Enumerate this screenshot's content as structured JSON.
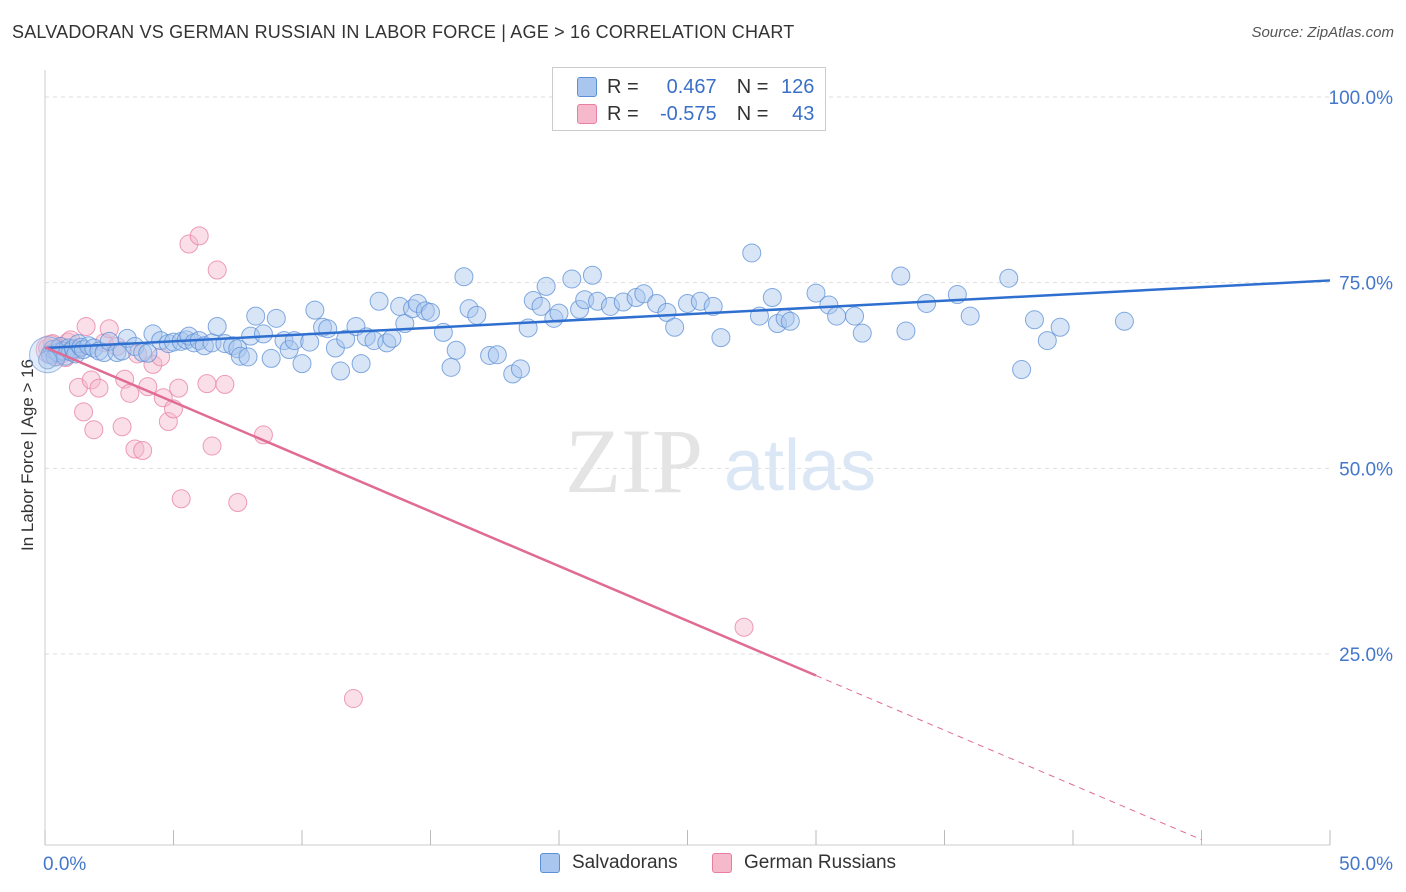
{
  "title": "SALVADORAN VS GERMAN RUSSIAN IN LABOR FORCE | AGE > 16 CORRELATION CHART",
  "source": "Source: ZipAtlas.com",
  "watermark": {
    "zip": "ZIP",
    "atlas": "atlas"
  },
  "colors": {
    "blue": "#5b8fd6",
    "blue_fill": "#a9c6ee",
    "blue_line": "#2f6fd0",
    "pink": "#e87ea1",
    "pink_fill": "#f5b9cb",
    "pink_line": "#e06b94",
    "axis_text": "#4477cc",
    "grid": "#dddddd"
  },
  "legend": {
    "r_label": "R =",
    "n_label": "N =",
    "blue": {
      "r": "0.467",
      "n": "126"
    },
    "pink": {
      "r": "-0.575",
      "n": "43"
    }
  },
  "bottom_legend": {
    "blue": "Salvadorans",
    "pink": "German Russians"
  },
  "chart_data": {
    "type": "scatter",
    "title": "SALVADORAN VS GERMAN RUSSIAN IN LABOR FORCE | AGE > 16 CORRELATION CHART",
    "xlabel": "",
    "ylabel": "In Labor Force | Age > 16",
    "xlim": [
      0,
      50
    ],
    "ylim": [
      0,
      105
    ],
    "x_tick_labels": [
      "0.0%",
      "50.0%"
    ],
    "y_ticks": [
      25,
      50,
      75,
      100
    ],
    "y_tick_labels": [
      "25.0%",
      "50.0%",
      "75.0%",
      "100.0%"
    ],
    "grid": true,
    "series": [
      {
        "name": "Salvadorans",
        "color": "#5b8fd6",
        "r": 0.467,
        "n": 126,
        "trend": {
          "x0": 0,
          "y0": 66.2,
          "x1": 50,
          "y1": 75.3,
          "dash_from": null
        },
        "points": [
          [
            0.2,
            65.3
          ],
          [
            0.3,
            66.0
          ],
          [
            0.4,
            65.0
          ],
          [
            0.5,
            65.6
          ],
          [
            0.6,
            66.4
          ],
          [
            0.7,
            65.8
          ],
          [
            0.8,
            65.1
          ],
          [
            0.9,
            66.2
          ],
          [
            1.0,
            65.7
          ],
          [
            1.1,
            66.1
          ],
          [
            1.2,
            65.4
          ],
          [
            1.3,
            66.8
          ],
          [
            1.4,
            66.3
          ],
          [
            1.5,
            66.0
          ],
          [
            1.7,
            66.5
          ],
          [
            1.9,
            66.2
          ],
          [
            2.1,
            65.8
          ],
          [
            2.3,
            65.6
          ],
          [
            2.5,
            67.1
          ],
          [
            2.8,
            65.6
          ],
          [
            3.0,
            65.8
          ],
          [
            3.2,
            67.5
          ],
          [
            3.5,
            66.4
          ],
          [
            3.8,
            65.6
          ],
          [
            4.0,
            65.5
          ],
          [
            4.2,
            68.1
          ],
          [
            4.5,
            67.2
          ],
          [
            4.8,
            66.8
          ],
          [
            5.0,
            67.0
          ],
          [
            5.3,
            67.1
          ],
          [
            5.5,
            67.3
          ],
          [
            5.6,
            67.8
          ],
          [
            5.8,
            66.9
          ],
          [
            6.0,
            67.2
          ],
          [
            6.2,
            66.5
          ],
          [
            6.5,
            66.9
          ],
          [
            6.7,
            69.1
          ],
          [
            7.0,
            66.8
          ],
          [
            7.3,
            66.5
          ],
          [
            7.5,
            66.1
          ],
          [
            7.6,
            65.1
          ],
          [
            7.9,
            65.0
          ],
          [
            8.0,
            67.8
          ],
          [
            8.2,
            70.5
          ],
          [
            8.5,
            68.1
          ],
          [
            8.8,
            64.8
          ],
          [
            9.0,
            70.2
          ],
          [
            9.3,
            67.2
          ],
          [
            9.5,
            66.0
          ],
          [
            9.7,
            67.2
          ],
          [
            10.0,
            64.1
          ],
          [
            10.3,
            67.0
          ],
          [
            10.5,
            71.3
          ],
          [
            10.8,
            69.0
          ],
          [
            11.0,
            68.8
          ],
          [
            11.3,
            66.2
          ],
          [
            11.5,
            63.1
          ],
          [
            11.7,
            67.4
          ],
          [
            12.1,
            69.1
          ],
          [
            12.3,
            64.1
          ],
          [
            12.5,
            67.7
          ],
          [
            12.8,
            67.2
          ],
          [
            13.0,
            72.5
          ],
          [
            13.3,
            66.9
          ],
          [
            13.5,
            67.5
          ],
          [
            13.8,
            71.8
          ],
          [
            14.0,
            69.5
          ],
          [
            14.3,
            71.5
          ],
          [
            14.5,
            72.2
          ],
          [
            14.8,
            71.2
          ],
          [
            15.0,
            71.0
          ],
          [
            15.5,
            68.3
          ],
          [
            15.8,
            63.6
          ],
          [
            16.0,
            65.9
          ],
          [
            16.3,
            75.8
          ],
          [
            16.5,
            71.5
          ],
          [
            16.8,
            70.6
          ],
          [
            17.3,
            65.2
          ],
          [
            17.6,
            65.3
          ],
          [
            18.2,
            62.7
          ],
          [
            18.5,
            63.4
          ],
          [
            18.8,
            68.9
          ],
          [
            19.0,
            72.6
          ],
          [
            19.3,
            71.8
          ],
          [
            19.5,
            74.5
          ],
          [
            19.8,
            70.2
          ],
          [
            20.0,
            70.9
          ],
          [
            20.5,
            75.5
          ],
          [
            20.8,
            71.4
          ],
          [
            21.0,
            72.7
          ],
          [
            21.3,
            76.0
          ],
          [
            21.5,
            72.5
          ],
          [
            22.0,
            71.8
          ],
          [
            22.5,
            72.4
          ],
          [
            23.0,
            73.0
          ],
          [
            23.3,
            73.5
          ],
          [
            23.8,
            72.2
          ],
          [
            24.2,
            71.0
          ],
          [
            24.5,
            69.0
          ],
          [
            25.0,
            72.2
          ],
          [
            25.5,
            72.5
          ],
          [
            26.0,
            71.8
          ],
          [
            26.3,
            67.6
          ],
          [
            27.5,
            79.0
          ],
          [
            27.8,
            70.5
          ],
          [
            28.3,
            73.0
          ],
          [
            28.5,
            69.5
          ],
          [
            28.8,
            70.2
          ],
          [
            29.0,
            69.8
          ],
          [
            30.0,
            73.6
          ],
          [
            30.5,
            72.0
          ],
          [
            30.8,
            70.5
          ],
          [
            31.5,
            70.5
          ],
          [
            31.8,
            68.2
          ],
          [
            33.3,
            75.9
          ],
          [
            33.5,
            68.5
          ],
          [
            34.3,
            72.2
          ],
          [
            35.5,
            73.4
          ],
          [
            36.0,
            70.5
          ],
          [
            37.5,
            75.6
          ],
          [
            38.0,
            63.3
          ],
          [
            38.5,
            70.0
          ],
          [
            39.0,
            67.2
          ],
          [
            39.5,
            69.0
          ],
          [
            42.0,
            69.8
          ],
          [
            0.1,
            64.6
          ]
        ]
      },
      {
        "name": "German Russians",
        "color": "#e87ea1",
        "r": -0.575,
        "n": 43,
        "trend": {
          "x0": 0,
          "y0": 66.3,
          "x1": 45.0,
          "y1": 0.0,
          "dash_from": 30.0
        },
        "points": [
          [
            0.1,
            66.2
          ],
          [
            0.2,
            65.5
          ],
          [
            0.3,
            66.8
          ],
          [
            0.4,
            65.0
          ],
          [
            0.5,
            66.1
          ],
          [
            0.6,
            65.3
          ],
          [
            0.8,
            64.9
          ],
          [
            0.9,
            67.0
          ],
          [
            1.0,
            67.3
          ],
          [
            1.2,
            65.9
          ],
          [
            1.3,
            60.9
          ],
          [
            1.5,
            57.6
          ],
          [
            1.6,
            69.1
          ],
          [
            1.8,
            61.9
          ],
          [
            1.9,
            55.2
          ],
          [
            2.1,
            60.8
          ],
          [
            2.3,
            66.9
          ],
          [
            2.5,
            68.8
          ],
          [
            2.8,
            66.4
          ],
          [
            3.0,
            55.6
          ],
          [
            3.1,
            62.0
          ],
          [
            3.3,
            60.1
          ],
          [
            3.5,
            52.6
          ],
          [
            3.6,
            65.4
          ],
          [
            3.8,
            52.4
          ],
          [
            4.0,
            61.0
          ],
          [
            4.2,
            64.0
          ],
          [
            4.5,
            65.0
          ],
          [
            4.6,
            59.5
          ],
          [
            4.8,
            56.3
          ],
          [
            5.0,
            58.0
          ],
          [
            5.2,
            60.8
          ],
          [
            5.3,
            45.9
          ],
          [
            5.6,
            80.2
          ],
          [
            6.0,
            81.3
          ],
          [
            6.3,
            61.4
          ],
          [
            6.5,
            53.0
          ],
          [
            6.7,
            76.7
          ],
          [
            7.0,
            61.3
          ],
          [
            7.5,
            45.4
          ],
          [
            8.5,
            54.5
          ],
          [
            12.0,
            19.0
          ],
          [
            27.2,
            28.6
          ]
        ]
      }
    ]
  }
}
